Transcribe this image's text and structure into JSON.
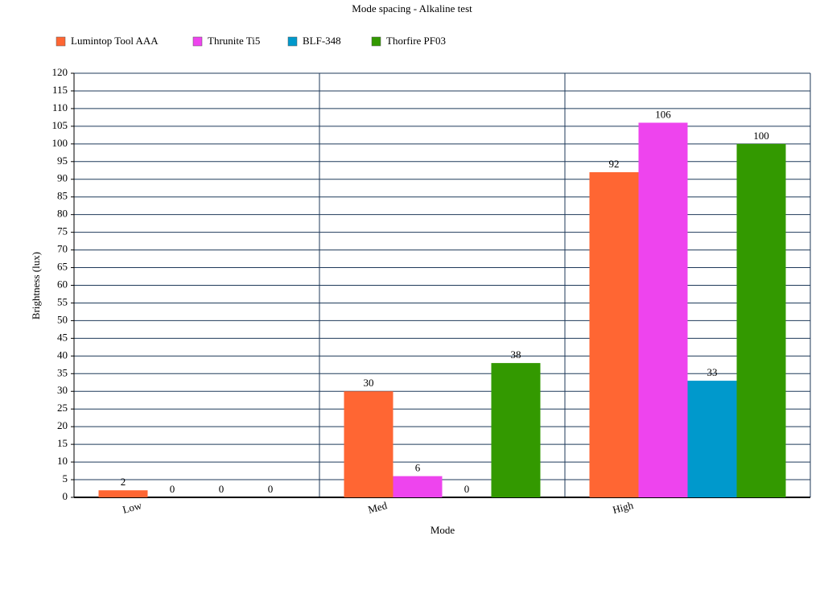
{
  "chart_data": {
    "type": "bar",
    "title": "Mode spacing - Alkaline test",
    "x_label": "Mode",
    "y_label": "Brightness (lux)",
    "categories": [
      "Low",
      "Med",
      "High"
    ],
    "series": [
      {
        "name": "Lumintop Tool AAA",
        "color": "#ff6633",
        "values": [
          2,
          30,
          92
        ]
      },
      {
        "name": "Thrunite Ti5",
        "color": "#ee44ee",
        "values": [
          0,
          6,
          106
        ]
      },
      {
        "name": "BLF-348",
        "color": "#0099cc",
        "values": [
          0,
          0,
          33
        ]
      },
      {
        "name": "Thorfire PF03",
        "color": "#339900",
        "values": [
          0,
          38,
          100
        ]
      }
    ],
    "ylim": [
      0,
      120
    ],
    "yticks": [
      0,
      5,
      10,
      15,
      20,
      25,
      30,
      35,
      40,
      45,
      50,
      55,
      60,
      65,
      70,
      75,
      80,
      85,
      90,
      95,
      100,
      105,
      110,
      115,
      120
    ],
    "grid": true,
    "legend": "top"
  }
}
